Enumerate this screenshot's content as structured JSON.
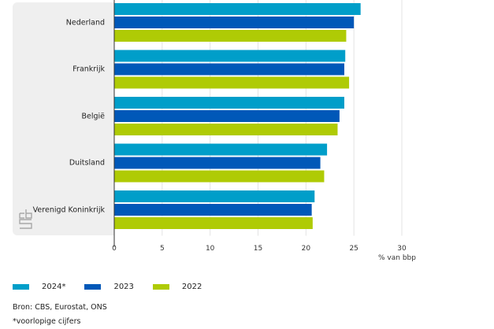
{
  "chart_data": {
    "type": "bar",
    "orientation": "horizontal",
    "title": "",
    "xlabel": "% van bbp",
    "ylabel": "",
    "xlim": [
      0,
      30
    ],
    "xticks": [
      0,
      5,
      10,
      15,
      20,
      25,
      30
    ],
    "grid": true,
    "legend_position": "bottom-left",
    "categories": [
      "Nederland",
      "Frankrijk",
      "België",
      "Duitsland",
      "Verenigd Koninkrijk"
    ],
    "series": [
      {
        "name": "2024*",
        "color": "#009ec9",
        "values": [
          25.7,
          24.1,
          24.0,
          22.2,
          20.9
        ]
      },
      {
        "name": "2023",
        "color": "#0058b8",
        "values": [
          25.0,
          24.0,
          23.5,
          21.5,
          20.6
        ]
      },
      {
        "name": "2022",
        "color": "#afcb05",
        "values": [
          24.2,
          24.5,
          23.3,
          21.9,
          20.7
        ]
      }
    ]
  },
  "source": "Bron: CBS, Eurostat, ONS",
  "footnote": "*voorlopige cijfers",
  "logo": "cbs-logo"
}
